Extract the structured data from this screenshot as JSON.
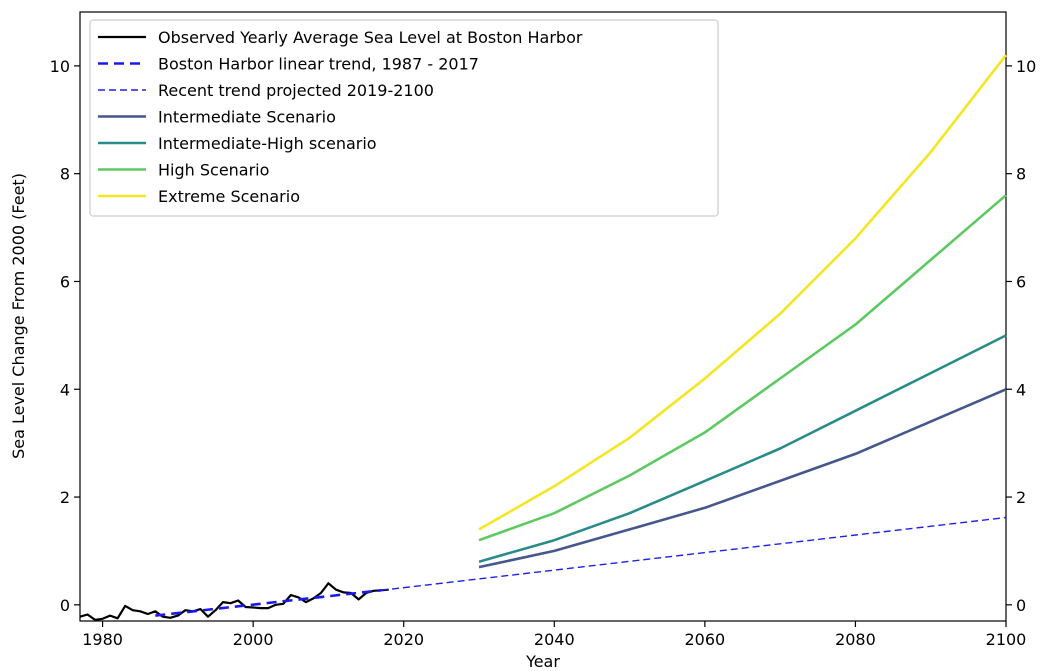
{
  "chart_data": {
    "type": "line",
    "title": "",
    "xlabel": "Year",
    "ylabel": "Sea Level Change From 2000 (Feet)",
    "xlim": [
      1977,
      2100
    ],
    "ylim": [
      -0.3,
      11
    ],
    "x_ticks": [
      1980,
      2000,
      2020,
      2040,
      2060,
      2080,
      2100
    ],
    "x_tick_labels": [
      "1980",
      "2000",
      "2020",
      "2040",
      "2060",
      "2080",
      "2100"
    ],
    "y_ticks": [
      0,
      2,
      4,
      6,
      8,
      10
    ],
    "y_tick_labels": [
      "0",
      "2",
      "4",
      "6",
      "8",
      "10"
    ],
    "right_axis_mirrors_left": true,
    "grid": false,
    "legend_position": "top-left",
    "series": [
      {
        "name": "Observed Yearly Average Sea Level at Boston Harbor",
        "style": "solid",
        "color": "#000000",
        "width": 2.2,
        "x": [
          1977,
          1978,
          1979,
          1980,
          1981,
          1982,
          1983,
          1984,
          1985,
          1986,
          1987,
          1988,
          1989,
          1990,
          1991,
          1992,
          1993,
          1994,
          1995,
          1996,
          1997,
          1998,
          1999,
          2000,
          2001,
          2002,
          2003,
          2004,
          2005,
          2006,
          2007,
          2008,
          2009,
          2010,
          2011,
          2012,
          2013,
          2014,
          2015,
          2016,
          2017,
          2018
        ],
        "y": [
          -0.22,
          -0.18,
          -0.28,
          -0.26,
          -0.2,
          -0.25,
          -0.02,
          -0.1,
          -0.12,
          -0.17,
          -0.12,
          -0.22,
          -0.24,
          -0.2,
          -0.1,
          -0.12,
          -0.08,
          -0.22,
          -0.1,
          0.05,
          0.03,
          0.08,
          -0.04,
          -0.05,
          -0.06,
          -0.06,
          0.0,
          0.02,
          0.18,
          0.14,
          0.05,
          0.12,
          0.22,
          0.4,
          0.28,
          0.23,
          0.22,
          0.1,
          0.22,
          0.26,
          0.27,
          0.28
        ]
      },
      {
        "name": "Boston Harbor linear trend, 1987 - 2017",
        "style": "dashed-thick",
        "color": "#1a1aee",
        "width": 2.6,
        "x": [
          1987,
          2017
        ],
        "y": [
          -0.2,
          0.27
        ]
      },
      {
        "name": "Recent trend projected 2019-2100",
        "style": "dashed-thin",
        "color": "#2020e8",
        "width": 1.4,
        "x": [
          2017,
          2100
        ],
        "y": [
          0.27,
          1.62
        ]
      },
      {
        "name": "Intermediate Scenario",
        "style": "solid",
        "color": "#46578e",
        "width": 2.6,
        "x": [
          2030,
          2040,
          2050,
          2060,
          2070,
          2080,
          2090,
          2100
        ],
        "y": [
          0.7,
          1.0,
          1.4,
          1.8,
          2.3,
          2.8,
          3.4,
          4.0
        ]
      },
      {
        "name": "Intermediate-High scenario",
        "style": "solid",
        "color": "#2a8c89",
        "width": 2.6,
        "x": [
          2030,
          2040,
          2050,
          2060,
          2070,
          2080,
          2090,
          2100
        ],
        "y": [
          0.8,
          1.2,
          1.7,
          2.3,
          2.9,
          3.6,
          4.3,
          5.0
        ]
      },
      {
        "name": "High Scenario",
        "style": "solid",
        "color": "#5ec962",
        "width": 2.6,
        "x": [
          2030,
          2040,
          2050,
          2060,
          2070,
          2080,
          2090,
          2100
        ],
        "y": [
          1.2,
          1.7,
          2.4,
          3.2,
          4.2,
          5.2,
          6.4,
          7.6
        ]
      },
      {
        "name": "Extreme Scenario",
        "style": "solid",
        "color": "#f4e623",
        "width": 2.6,
        "x": [
          2030,
          2040,
          2050,
          2060,
          2070,
          2080,
          2090,
          2100
        ],
        "y": [
          1.4,
          2.2,
          3.1,
          4.2,
          5.4,
          6.8,
          8.4,
          10.2
        ]
      }
    ]
  }
}
